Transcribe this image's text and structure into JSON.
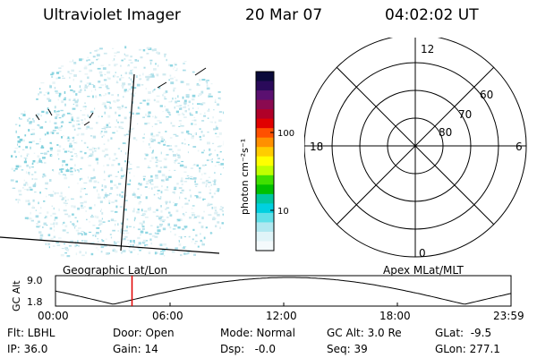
{
  "header": {
    "title": "Ultraviolet Imager",
    "date": "20 Mar 07",
    "time": "04:02:02 UT"
  },
  "colorbar": {
    "axis_label": "photon cm⁻²s⁻¹",
    "ticks": [
      "100",
      "10"
    ],
    "colors": [
      "#0a0a3a",
      "#2a0a5a",
      "#5a1070",
      "#8a0a50",
      "#b00028",
      "#e00000",
      "#ff5000",
      "#ff9000",
      "#ffcc00",
      "#ffff00",
      "#c0ff00",
      "#40e000",
      "#00c000",
      "#00c8a0",
      "#00d0e0",
      "#60e0e8",
      "#b0e8f0",
      "#e0f4f8",
      "#f4fafc"
    ]
  },
  "polar_plot": {
    "lat_labels": [
      "60",
      "70",
      "80"
    ],
    "mlt_labels": [
      "12",
      "18",
      "6",
      "0"
    ]
  },
  "timeline": {
    "axis_title": "GC Alt",
    "y_ticks": [
      "9.0",
      "1.8"
    ],
    "left_label": "Geographic Lat/Lon",
    "right_label": "Apex MLat/MLT",
    "x_ticks": [
      "00:00",
      "06:00",
      "12:00",
      "18:00",
      "23:59"
    ],
    "marker_time": "04:02"
  },
  "info": {
    "flt": "Flt: LBHL",
    "ip": "IP: 36.0",
    "door": "Door: Open",
    "gain": "Gain: 14",
    "mode": "Mode: Normal",
    "dsp": "Dsp:   -0.0",
    "gcalt": "GC Alt: 3.0 Re",
    "seq": "Seq: 39",
    "glat": "GLat:  -9.5",
    "glon": "GLon: 277.1"
  }
}
